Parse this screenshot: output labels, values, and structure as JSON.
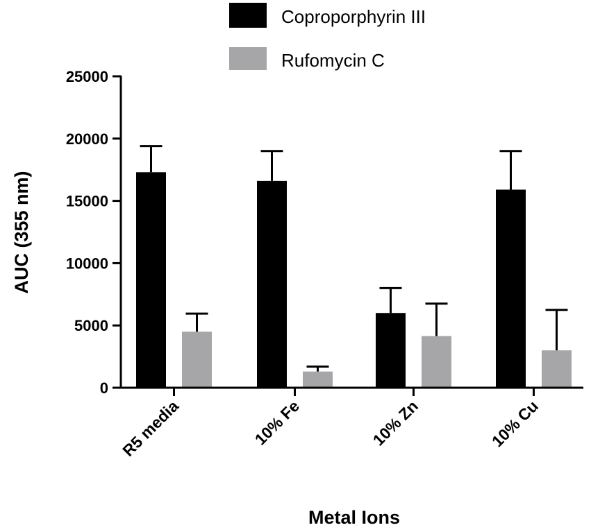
{
  "chart_data": {
    "type": "bar",
    "categories": [
      "R5 media",
      "10% Fe",
      "10% Zn",
      "10% Cu"
    ],
    "series": [
      {
        "name": "Coproporphyrin III",
        "color": "#000000",
        "values": [
          17300,
          16600,
          6000,
          15900
        ],
        "errors": [
          2100,
          2400,
          2000,
          3100
        ]
      },
      {
        "name": "Rufomycin C",
        "color": "#a6a6a8",
        "values": [
          4500,
          1300,
          4150,
          3000
        ],
        "errors": [
          1450,
          400,
          2600,
          3250
        ]
      }
    ],
    "title": "",
    "xlabel": "Metal Ions",
    "ylabel": "AUC (355 nm)",
    "ylim": [
      0,
      25000
    ],
    "yticks": [
      0,
      5000,
      10000,
      15000,
      20000,
      25000
    ],
    "grid": false,
    "legend_position": "top-right"
  }
}
